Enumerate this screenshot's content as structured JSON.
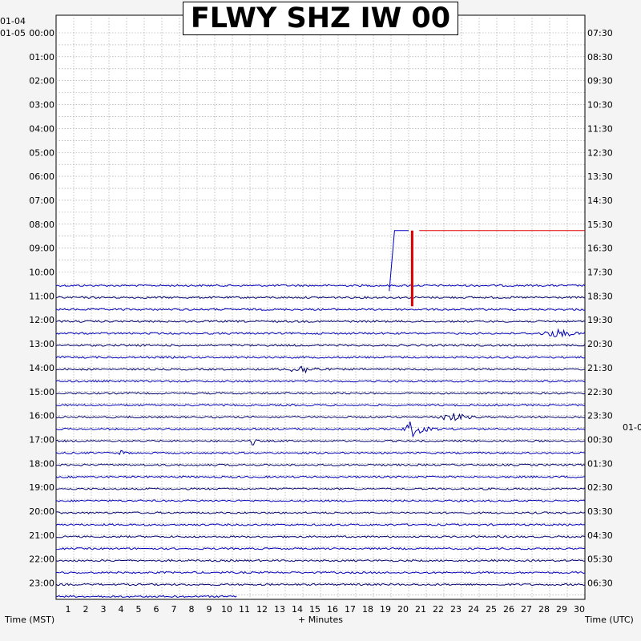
{
  "chart_data": {
    "type": "line",
    "title": "FLWY SHZ IW 00",
    "xlabel": "+ Minutes",
    "ylabel_left": "Time (MST)",
    "ylabel_right": "Time (UTC)",
    "xlim": [
      0,
      30
    ],
    "x_ticks": [
      "1",
      "2",
      "3",
      "4",
      "5",
      "6",
      "7",
      "8",
      "9",
      "10",
      "11",
      "12",
      "13",
      "14",
      "15",
      "16",
      "17",
      "18",
      "19",
      "20",
      "21",
      "22",
      "23",
      "24",
      "25",
      "26",
      "27",
      "28",
      "29",
      "30"
    ],
    "grid": true,
    "left_date_top": "01-04",
    "left_date_start": "01-05",
    "right_date_change": "01-0",
    "left_hour_labels": [
      "00:00",
      "01:00",
      "02:00",
      "03:00",
      "04:00",
      "05:00",
      "06:00",
      "07:00",
      "08:00",
      "09:00",
      "10:00",
      "11:00",
      "12:00",
      "13:00",
      "14:00",
      "15:00",
      "16:00",
      "17:00",
      "18:00",
      "19:00",
      "20:00",
      "21:00",
      "22:00",
      "23:00"
    ],
    "right_hour_labels": [
      "07:30",
      "08:30",
      "09:30",
      "10:30",
      "11:30",
      "12:30",
      "13:30",
      "14:30",
      "15:30",
      "16:30",
      "17:30",
      "18:30",
      "19:30",
      "20:30",
      "21:30",
      "22:30",
      "23:30",
      "00:30",
      "01:30",
      "02:30",
      "03:30",
      "04:30",
      "05:30",
      "06:30"
    ],
    "trace_colors": [
      "#0000b8",
      "#00006e"
    ],
    "event_color": "#dd0000",
    "traces_start_hour": 10.5,
    "traces_end_hour": 23.5,
    "last_trace_end_minute": 10.3,
    "events": [
      {
        "hour": 8,
        "minute": 19.2,
        "type": "offset-step",
        "note": "blue step near 08:00-11:00"
      },
      {
        "hour": 8,
        "minute": 20.2,
        "type": "clipped-spike",
        "color": "#dd0000"
      },
      {
        "hour": 12.5,
        "minute": 28.5,
        "type": "burst"
      },
      {
        "hour": 14,
        "minute": 14.0,
        "type": "burst"
      },
      {
        "hour": 16.5,
        "minute": 20.1,
        "type": "earthquake"
      },
      {
        "hour": 16,
        "minute": 22.5,
        "type": "burst"
      },
      {
        "hour": 17,
        "minute": 11.2,
        "type": "spike"
      },
      {
        "hour": 17.5,
        "minute": 3.8,
        "type": "spike"
      }
    ]
  }
}
